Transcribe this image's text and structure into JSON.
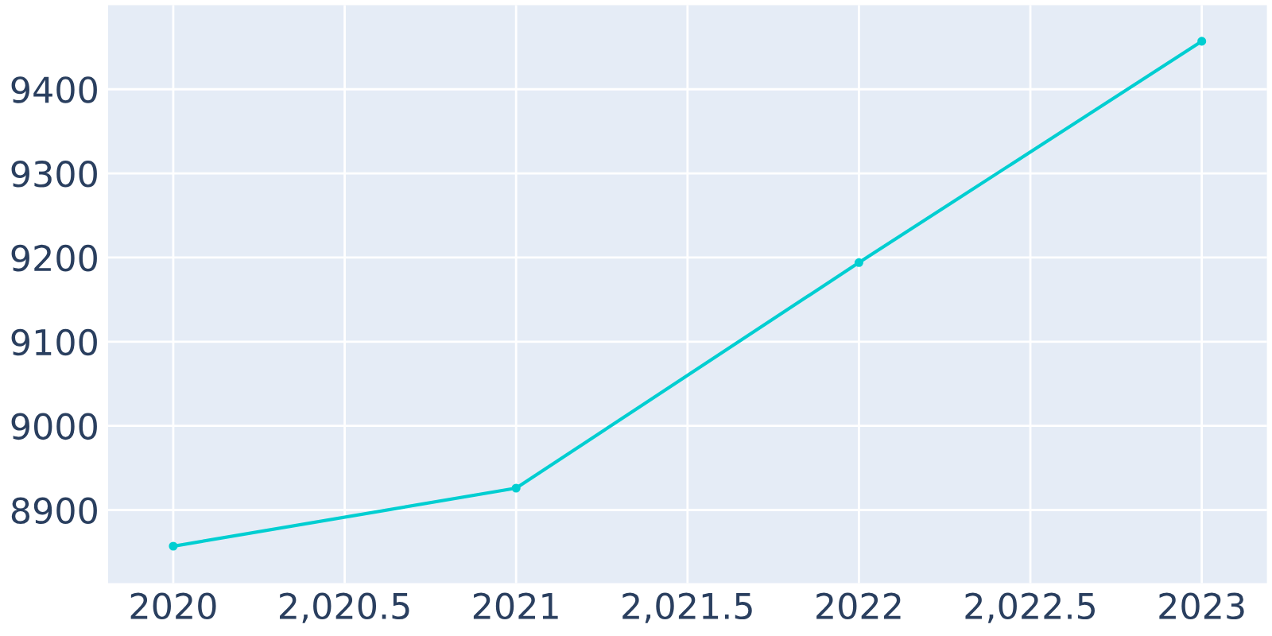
{
  "chart_data": {
    "type": "line",
    "x": [
      2020,
      2021,
      2022,
      2023
    ],
    "series": [
      {
        "color": "#00ced1",
        "values": [
          8857,
          8926,
          9194,
          9457
        ]
      }
    ],
    "xlim": [
      2019.81,
      2023.19
    ],
    "ylim": [
      8813,
      9500
    ],
    "xticks": [
      2020,
      {
        "value": 2020.5,
        "label": "2,020.5"
      },
      2021,
      {
        "value": 2021.5,
        "label": "2,021.5"
      },
      2022,
      {
        "value": 2022.5,
        "label": "2,022.5"
      },
      2023
    ],
    "yticks": [
      8900,
      9000,
      9100,
      9200,
      9300,
      9400
    ],
    "grid": true,
    "marker": "circle",
    "line_style": "solid"
  }
}
